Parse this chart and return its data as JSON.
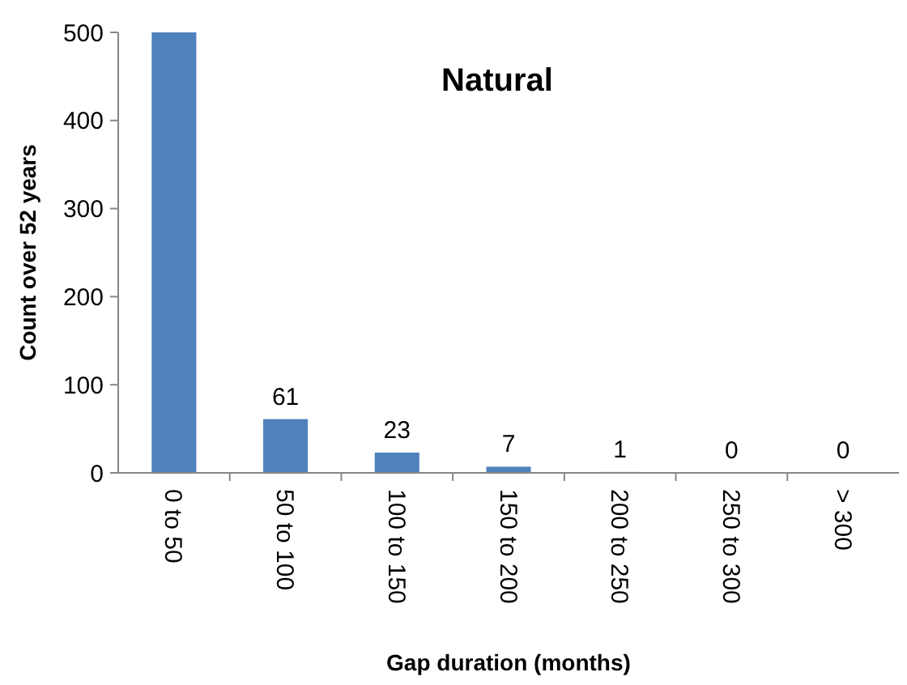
{
  "chart_data": {
    "type": "bar",
    "title": "Natural",
    "xlabel": "Gap duration (months)",
    "ylabel": "Count over 52 years",
    "categories": [
      "0 to 50",
      "50 to 100",
      "100 to 150",
      "150 to 200",
      "200 to 250",
      "250 to 300",
      "> 300"
    ],
    "values": [
      500,
      61,
      23,
      7,
      1,
      0,
      0
    ],
    "value_labels": [
      null,
      "61",
      "23",
      "7",
      "1",
      "0",
      "0"
    ],
    "color": "#4f81bd",
    "ylim": [
      0,
      500
    ],
    "yticks": [
      0,
      100,
      200,
      300,
      400,
      500
    ],
    "grid": false
  }
}
